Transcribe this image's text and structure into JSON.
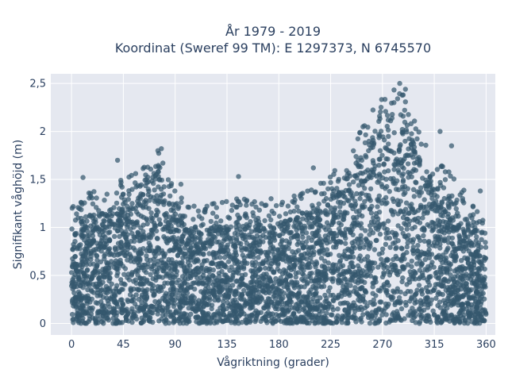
{
  "chart_data": {
    "type": "scatter",
    "title_line1": "År 1979 - 2019",
    "title_line2": "Koordinat (Sweref 99 TM): E 1297373, N 6745570",
    "xlabel": "Vågriktning (grader)",
    "ylabel": "Signifikant våghöjd (m)",
    "xlim": [
      -18,
      368
    ],
    "ylim": [
      -0.12,
      2.6
    ],
    "xticks": [
      0,
      45,
      90,
      135,
      180,
      225,
      270,
      315,
      360
    ],
    "xtick_labels": [
      "0",
      "45",
      "90",
      "135",
      "180",
      "225",
      "270",
      "315",
      "360"
    ],
    "yticks": [
      0,
      0.5,
      1,
      1.5,
      2,
      2.5
    ],
    "ytick_labels": [
      "0",
      "0,5",
      "1",
      "1,5",
      "2",
      "2,5"
    ],
    "grid": true,
    "marker_color": "#34586e",
    "plot_background": "#e5e8f0",
    "envelope": {
      "x": [
        0,
        10,
        20,
        30,
        40,
        50,
        60,
        70,
        75,
        80,
        90,
        100,
        110,
        120,
        135,
        150,
        165,
        180,
        195,
        210,
        225,
        240,
        250,
        260,
        270,
        278,
        285,
        292,
        300,
        310,
        320,
        330,
        340,
        350,
        360
      ],
      "ymax": [
        0.95,
        1.1,
        1.15,
        1.2,
        1.25,
        1.3,
        1.35,
        1.55,
        1.65,
        1.45,
        1.15,
        1.0,
        1.0,
        1.0,
        1.05,
        1.05,
        1.05,
        1.05,
        1.1,
        1.2,
        1.35,
        1.55,
        1.75,
        1.95,
        2.1,
        2.25,
        2.2,
        2.05,
        1.8,
        1.55,
        1.45,
        1.3,
        1.15,
        1.0,
        0.85
      ]
    },
    "notable_points": [
      {
        "x": 285,
        "y": 2.5
      },
      {
        "x": 288,
        "y": 2.38
      },
      {
        "x": 290,
        "y": 2.44
      },
      {
        "x": 280,
        "y": 2.3
      },
      {
        "x": 75,
        "y": 1.8
      },
      {
        "x": 78,
        "y": 1.82
      },
      {
        "x": 40,
        "y": 1.7
      },
      {
        "x": 145,
        "y": 1.53
      },
      {
        "x": 210,
        "y": 1.62
      },
      {
        "x": 330,
        "y": 1.85
      },
      {
        "x": 320,
        "y": 2.0
      },
      {
        "x": 10,
        "y": 1.52
      },
      {
        "x": 355,
        "y": 1.38
      },
      {
        "x": 95,
        "y": 1.45
      }
    ]
  }
}
